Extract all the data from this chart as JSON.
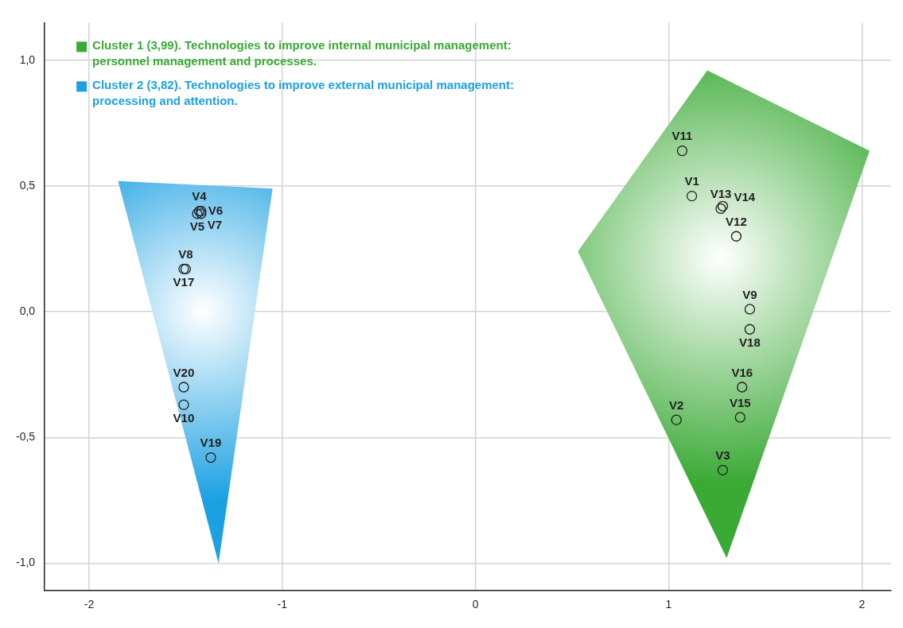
{
  "chart_data": {
    "type": "scatter",
    "xlim": [
      -2.23,
      2.15
    ],
    "xticks": [
      -2,
      -1,
      0,
      1,
      2
    ],
    "ylim": [
      -1.11,
      1.15
    ],
    "yticks": [
      {
        "value": -1,
        "label": "-1,0"
      },
      {
        "value": -0.5,
        "label": "-0,5"
      },
      {
        "value": 0,
        "label": "0,0"
      },
      {
        "value": 0.5,
        "label": "0,5"
      },
      {
        "value": 1,
        "label": "1,0"
      }
    ],
    "grid": true,
    "legend": "top left",
    "series": [
      {
        "type": "area",
        "marker": "none",
        "name": "Cluster 1 (3,99). Technologies to improve internal municipal management: personnel management and processes.",
        "color": "#3aaa35",
        "x": [
          0.53,
          1.2,
          2.04,
          1.3
        ],
        "values": [
          0.24,
          0.96,
          0.64,
          -0.98
        ]
      },
      {
        "type": "area",
        "marker": "none",
        "name": "Cluster 2 (3,82). Technologies to improve external municipal management: processing and attention.",
        "color": "#1ba1e2",
        "x": [
          -1.85,
          -1.05,
          -1.33
        ],
        "values": [
          0.52,
          0.49,
          -1.0
        ]
      },
      {
        "type": "scatter",
        "marker": "circle",
        "color": "#231f20",
        "x": [
          1.12,
          1.04,
          1.28,
          -1.43,
          -1.44,
          -1.42,
          -1.42,
          -1.5,
          1.42,
          -1.51,
          1.07,
          1.35,
          1.27,
          1.28,
          1.37,
          1.38,
          -1.51,
          1.42,
          -1.37,
          -1.51
        ],
        "values": [
          0.46,
          -0.43,
          -0.63,
          0.4,
          0.39,
          0.4,
          0.39,
          0.17,
          0.01,
          -0.37,
          0.64,
          0.3,
          0.41,
          0.42,
          -0.42,
          -0.3,
          0.17,
          -0.07,
          -0.58,
          -0.3
        ],
        "value_labels": [
          "V1",
          "V2",
          "V3",
          "V4",
          "V5",
          "V6",
          "V7",
          "V8",
          "V9",
          "V10",
          "V11",
          "V12",
          "V13",
          "V14",
          "V15",
          "V16",
          "V17",
          "V18",
          "V19",
          "V20"
        ]
      }
    ]
  }
}
